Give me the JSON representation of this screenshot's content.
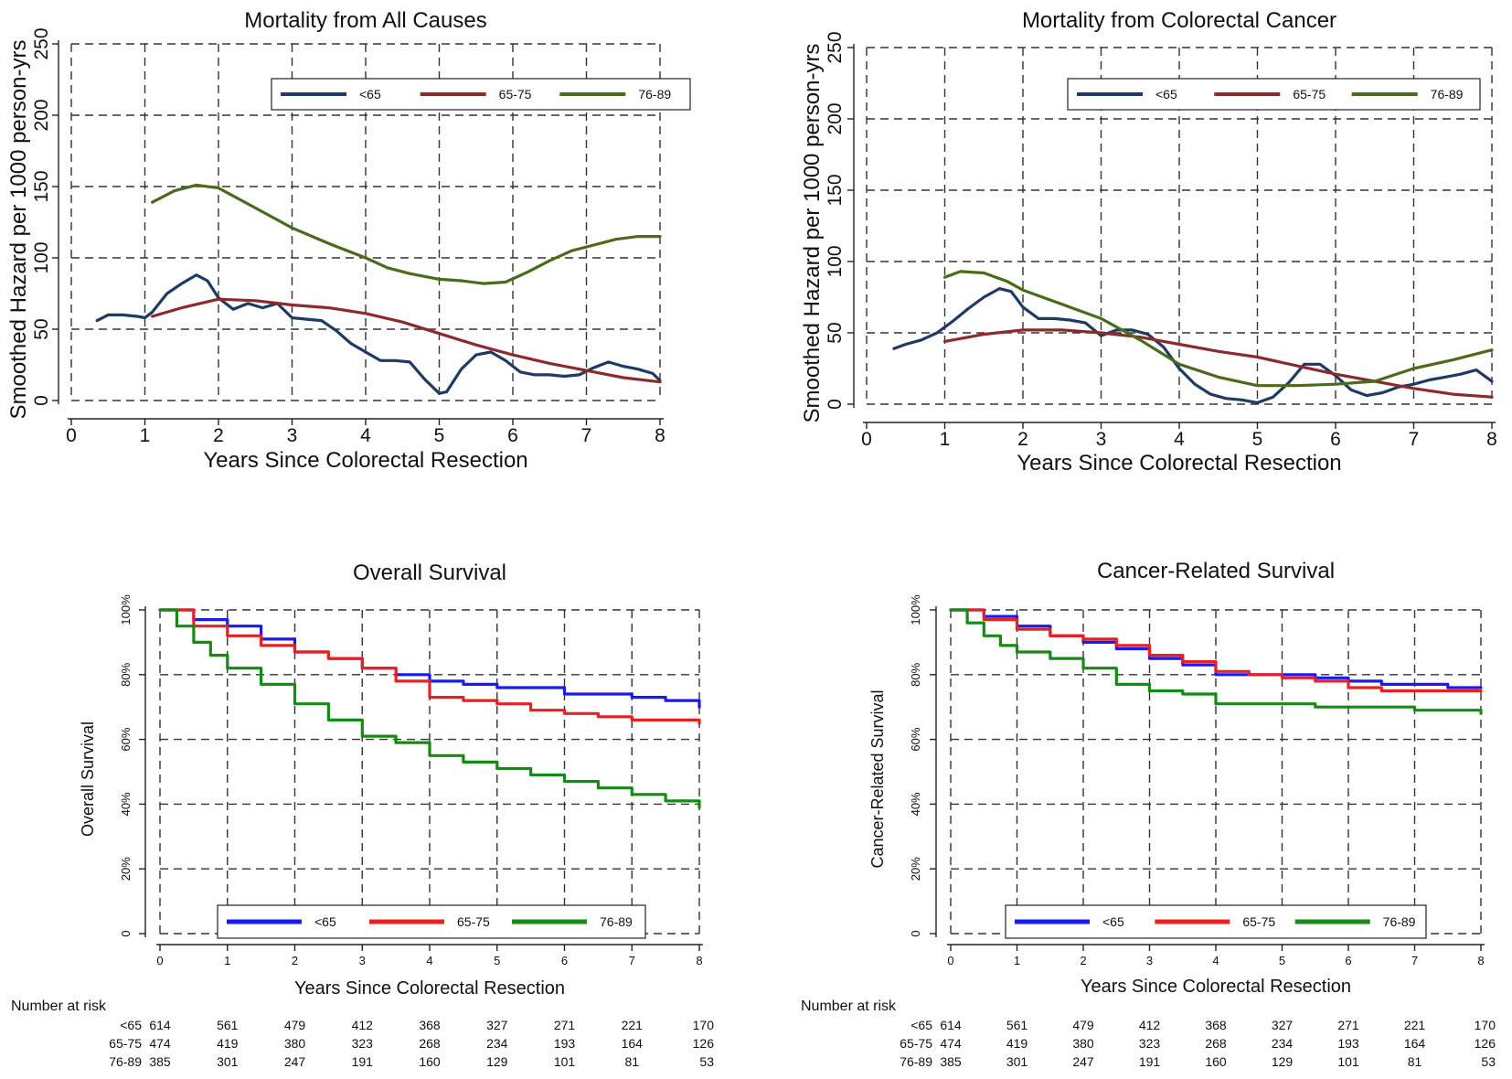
{
  "chart_data": [
    {
      "id": "p1",
      "type": "line",
      "title": "Mortality from All Causes",
      "xlabel": "Years Since Colorectal Resection",
      "ylabel": "Smoothed Hazard per 1000 person-yrs",
      "xlim": [
        0,
        8
      ],
      "ylim": [
        0,
        250
      ],
      "xticks": [
        0,
        1,
        2,
        3,
        4,
        5,
        6,
        7,
        8
      ],
      "yticks": [
        0,
        50,
        100,
        150,
        200,
        250
      ],
      "xtick_labels": [
        "0",
        "1",
        "2",
        "3",
        "4",
        "5",
        "6",
        "7",
        "8"
      ],
      "ytick_labels": [
        "0",
        "50",
        "100",
        "150",
        "200",
        "250"
      ],
      "grid": true,
      "legend_position": "top-right",
      "series": [
        {
          "name": "<65",
          "color": "#1f3a64",
          "x": [
            0.35,
            0.5,
            0.7,
            0.9,
            1.0,
            1.1,
            1.3,
            1.5,
            1.7,
            1.85,
            2.0,
            2.2,
            2.4,
            2.6,
            2.8,
            3.0,
            3.2,
            3.4,
            3.6,
            3.8,
            4.0,
            4.2,
            4.4,
            4.6,
            4.8,
            5.0,
            5.1,
            5.3,
            5.5,
            5.7,
            5.9,
            6.1,
            6.3,
            6.5,
            6.7,
            6.9,
            7.1,
            7.3,
            7.5,
            7.7,
            7.9,
            8.0
          ],
          "y": [
            56,
            60,
            60,
            59,
            58,
            62,
            75,
            82,
            88,
            84,
            72,
            64,
            68,
            65,
            68,
            58,
            57,
            56,
            49,
            40,
            34,
            28,
            28,
            27,
            15,
            5,
            6,
            22,
            32,
            34,
            28,
            20,
            18,
            18,
            17,
            18,
            23,
            27,
            24,
            22,
            19,
            14
          ]
        },
        {
          "name": "65-75",
          "color": "#8c2a2e",
          "x": [
            1.1,
            1.5,
            2.0,
            2.5,
            3.0,
            3.5,
            4.0,
            4.5,
            5.0,
            5.5,
            6.0,
            6.5,
            7.0,
            7.5,
            8.0
          ],
          "y": [
            59,
            65,
            71,
            70,
            67,
            65,
            61,
            55,
            47,
            39,
            32,
            26,
            21,
            16,
            13
          ]
        },
        {
          "name": "76-89",
          "color": "#4a6b1b",
          "x": [
            1.1,
            1.4,
            1.7,
            2.0,
            2.5,
            3.0,
            3.5,
            4.0,
            4.3,
            4.6,
            5.0,
            5.3,
            5.6,
            5.9,
            6.2,
            6.5,
            6.8,
            7.1,
            7.4,
            7.7,
            8.0
          ],
          "y": [
            139,
            147,
            151,
            149,
            135,
            121,
            110,
            100,
            93,
            89,
            85,
            84,
            82,
            83,
            90,
            98,
            105,
            109,
            113,
            115,
            115
          ]
        }
      ]
    },
    {
      "id": "p2",
      "type": "line",
      "title": "Mortality from Colorectal Cancer",
      "xlabel": "Years Since Colorectal Resection",
      "ylabel": "Smoothed Hazard per 1000 person-yrs",
      "xlim": [
        0,
        8
      ],
      "ylim": [
        0,
        250
      ],
      "xticks": [
        0,
        1,
        2,
        3,
        4,
        5,
        6,
        7,
        8
      ],
      "yticks": [
        0,
        50,
        100,
        150,
        200,
        250
      ],
      "xtick_labels": [
        "0",
        "1",
        "2",
        "3",
        "4",
        "5",
        "6",
        "7",
        "8"
      ],
      "ytick_labels": [
        "0",
        "50",
        "100",
        "150",
        "200",
        "250"
      ],
      "grid": true,
      "legend_position": "top-right",
      "series": [
        {
          "name": "<65",
          "color": "#1f3a64",
          "x": [
            0.35,
            0.5,
            0.7,
            0.9,
            1.1,
            1.3,
            1.5,
            1.7,
            1.85,
            2.0,
            2.2,
            2.4,
            2.6,
            2.8,
            3.0,
            3.2,
            3.4,
            3.6,
            3.8,
            4.0,
            4.2,
            4.4,
            4.6,
            4.8,
            5.0,
            5.2,
            5.4,
            5.6,
            5.8,
            6.0,
            6.2,
            6.4,
            6.6,
            6.8,
            7.0,
            7.2,
            7.4,
            7.6,
            7.8,
            8.0
          ],
          "y": [
            39,
            42,
            45,
            50,
            58,
            67,
            75,
            81,
            79,
            68,
            60,
            60,
            59,
            57,
            48,
            52,
            52,
            49,
            40,
            25,
            14,
            7,
            4,
            3,
            1,
            5,
            15,
            28,
            28,
            20,
            10,
            6,
            8,
            12,
            14,
            17,
            19,
            21,
            24,
            16
          ]
        },
        {
          "name": "65-75",
          "color": "#8c2a2e",
          "x": [
            1.0,
            1.5,
            2.0,
            2.5,
            3.0,
            3.5,
            4.0,
            4.5,
            5.0,
            5.5,
            6.0,
            6.5,
            7.0,
            7.5,
            8.0
          ],
          "y": [
            44,
            49,
            52,
            52,
            50,
            47,
            42,
            37,
            33,
            27,
            21,
            16,
            11,
            7,
            5
          ]
        },
        {
          "name": "76-89",
          "color": "#4a6b1b",
          "x": [
            1.0,
            1.2,
            1.5,
            1.8,
            2.0,
            2.5,
            3.0,
            3.5,
            4.0,
            4.5,
            5.0,
            5.5,
            6.0,
            6.5,
            7.0,
            7.5,
            8.0
          ],
          "y": [
            89,
            93,
            92,
            86,
            80,
            70,
            60,
            45,
            28,
            19,
            13,
            13,
            14,
            16,
            25,
            31,
            38
          ]
        }
      ]
    },
    {
      "id": "p3",
      "type": "line",
      "title": "Overall Survival",
      "xlabel": "Years Since Colorectal Resection",
      "ylabel": "Overall Survival",
      "xlim": [
        0,
        8
      ],
      "ylim": [
        0,
        1
      ],
      "xticks": [
        0,
        1,
        2,
        3,
        4,
        5,
        6,
        7,
        8
      ],
      "yticks": [
        0,
        0.2,
        0.4,
        0.6,
        0.8,
        1.0
      ],
      "xtick_labels": [
        "0",
        "1",
        "2",
        "3",
        "4",
        "5",
        "6",
        "7",
        "8"
      ],
      "ytick_labels": [
        "0",
        "20%",
        "40%",
        "60%",
        "80%",
        "100%"
      ],
      "grid": true,
      "legend_position": "bottom-center",
      "series": [
        {
          "name": "<65",
          "color": "#1a1aee",
          "x": [
            0,
            0.5,
            1.0,
            1.5,
            2.0,
            2.5,
            3.0,
            3.5,
            4.0,
            4.5,
            5.0,
            5.5,
            6.0,
            6.5,
            7.0,
            7.5,
            8.0
          ],
          "y": [
            1.0,
            0.97,
            0.95,
            0.91,
            0.87,
            0.85,
            0.82,
            0.8,
            0.78,
            0.77,
            0.76,
            0.76,
            0.74,
            0.74,
            0.73,
            0.72,
            0.7
          ]
        },
        {
          "name": "65-75",
          "color": "#e82020",
          "x": [
            0,
            0.5,
            1.0,
            1.5,
            2.0,
            2.5,
            3.0,
            3.5,
            4.0,
            4.5,
            5.0,
            5.5,
            6.0,
            6.5,
            7.0,
            7.5,
            8.0
          ],
          "y": [
            1.0,
            0.95,
            0.92,
            0.89,
            0.87,
            0.85,
            0.82,
            0.78,
            0.73,
            0.72,
            0.71,
            0.69,
            0.68,
            0.67,
            0.66,
            0.66,
            0.65
          ]
        },
        {
          "name": "76-89",
          "color": "#158a15",
          "x": [
            0,
            0.25,
            0.5,
            0.75,
            1.0,
            1.5,
            2.0,
            2.5,
            3.0,
            3.5,
            4.0,
            4.5,
            5.0,
            5.5,
            6.0,
            6.5,
            7.0,
            7.5,
            8.0
          ],
          "y": [
            1.0,
            0.95,
            0.9,
            0.86,
            0.82,
            0.77,
            0.71,
            0.66,
            0.61,
            0.59,
            0.55,
            0.53,
            0.51,
            0.49,
            0.47,
            0.45,
            0.43,
            0.41,
            0.39
          ]
        }
      ],
      "at_risk": {
        "header": "Number at risk",
        "rows": [
          {
            "label": "<65",
            "values": [
              "614",
              "561",
              "479",
              "412",
              "368",
              "327",
              "271",
              "221",
              "170"
            ]
          },
          {
            "label": "65-75",
            "values": [
              "474",
              "419",
              "380",
              "323",
              "268",
              "234",
              "193",
              "164",
              "126"
            ]
          },
          {
            "label": "76-89",
            "values": [
              "385",
              "301",
              "247",
              "191",
              "160",
              "129",
              "101",
              "81",
              "53"
            ]
          }
        ]
      }
    },
    {
      "id": "p4",
      "type": "line",
      "title": "Cancer-Related Survival",
      "xlabel": "Years Since Colorectal Resection",
      "ylabel": "Cancer-Related Survival",
      "xlim": [
        0,
        8
      ],
      "ylim": [
        0,
        1
      ],
      "xticks": [
        0,
        1,
        2,
        3,
        4,
        5,
        6,
        7,
        8
      ],
      "yticks": [
        0,
        0.2,
        0.4,
        0.6,
        0.8,
        1.0
      ],
      "xtick_labels": [
        "0",
        "1",
        "2",
        "3",
        "4",
        "5",
        "6",
        "7",
        "8"
      ],
      "ytick_labels": [
        "0",
        "20%",
        "40%",
        "60%",
        "80%",
        "100%"
      ],
      "grid": true,
      "legend_position": "bottom-center",
      "series": [
        {
          "name": "<65",
          "color": "#1a1aee",
          "x": [
            0,
            0.5,
            1.0,
            1.5,
            2.0,
            2.5,
            3.0,
            3.5,
            4.0,
            4.5,
            5.0,
            5.5,
            6.0,
            6.5,
            7.0,
            7.5,
            8.0
          ],
          "y": [
            1.0,
            0.98,
            0.95,
            0.92,
            0.9,
            0.88,
            0.85,
            0.83,
            0.8,
            0.8,
            0.8,
            0.79,
            0.78,
            0.77,
            0.77,
            0.76,
            0.76
          ]
        },
        {
          "name": "65-75",
          "color": "#e82020",
          "x": [
            0,
            0.5,
            1.0,
            1.5,
            2.0,
            2.5,
            3.0,
            3.5,
            4.0,
            4.5,
            5.0,
            5.5,
            6.0,
            6.5,
            7.0,
            7.5,
            8.0
          ],
          "y": [
            1.0,
            0.97,
            0.94,
            0.92,
            0.91,
            0.89,
            0.86,
            0.84,
            0.81,
            0.8,
            0.79,
            0.78,
            0.76,
            0.75,
            0.75,
            0.75,
            0.75
          ]
        },
        {
          "name": "76-89",
          "color": "#158a15",
          "x": [
            0,
            0.25,
            0.5,
            0.75,
            1.0,
            1.5,
            2.0,
            2.5,
            3.0,
            3.5,
            4.0,
            4.5,
            5.0,
            5.5,
            6.0,
            6.5,
            7.0,
            7.5,
            8.0
          ],
          "y": [
            1.0,
            0.96,
            0.92,
            0.89,
            0.87,
            0.85,
            0.82,
            0.77,
            0.75,
            0.74,
            0.71,
            0.71,
            0.71,
            0.7,
            0.7,
            0.7,
            0.69,
            0.69,
            0.68
          ]
        }
      ],
      "at_risk": {
        "header": "Number at risk",
        "rows": [
          {
            "label": "<65",
            "values": [
              "614",
              "561",
              "479",
              "412",
              "368",
              "327",
              "271",
              "221",
              "170"
            ]
          },
          {
            "label": "65-75",
            "values": [
              "474",
              "419",
              "380",
              "323",
              "268",
              "234",
              "193",
              "164",
              "126"
            ]
          },
          {
            "label": "76-89",
            "values": [
              "385",
              "301",
              "247",
              "191",
              "160",
              "129",
              "101",
              "81",
              "53"
            ]
          }
        ]
      }
    }
  ]
}
